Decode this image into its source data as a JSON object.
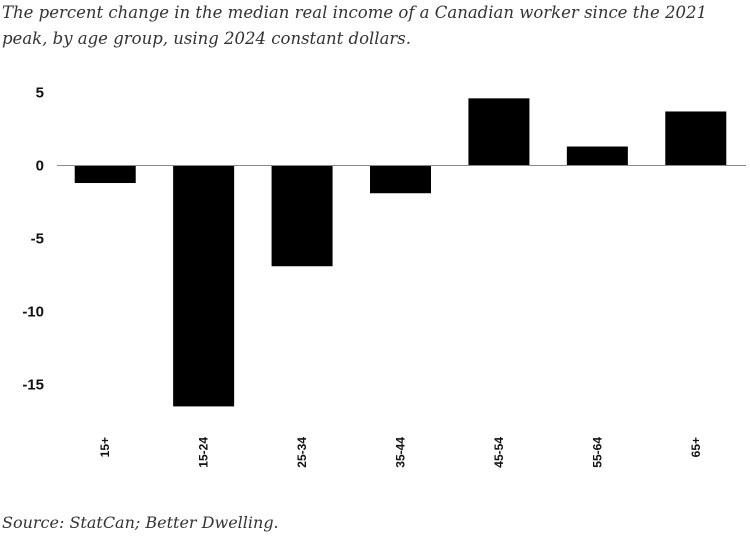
{
  "subtitle_line1": "The percent change in the median real income of a Canadian worker since the 2021",
  "subtitle_line2": "peak, by age group, using 2024 constant dollars.",
  "source": "Source: StatCan; Better Dwelling.",
  "chart_data": {
    "type": "bar",
    "categories": [
      "15+",
      "15-24",
      "25-34",
      "35-44",
      "45-54",
      "55-64",
      "65+"
    ],
    "values": [
      -1.2,
      -16.5,
      -6.9,
      -1.9,
      4.6,
      1.3,
      3.7
    ],
    "y_ticks": [
      "5",
      "0",
      "-5",
      "-10",
      "-15"
    ],
    "ylim": [
      -17,
      5
    ],
    "bar_color": "#000000",
    "grid": false,
    "xlabel": "",
    "ylabel": ""
  }
}
